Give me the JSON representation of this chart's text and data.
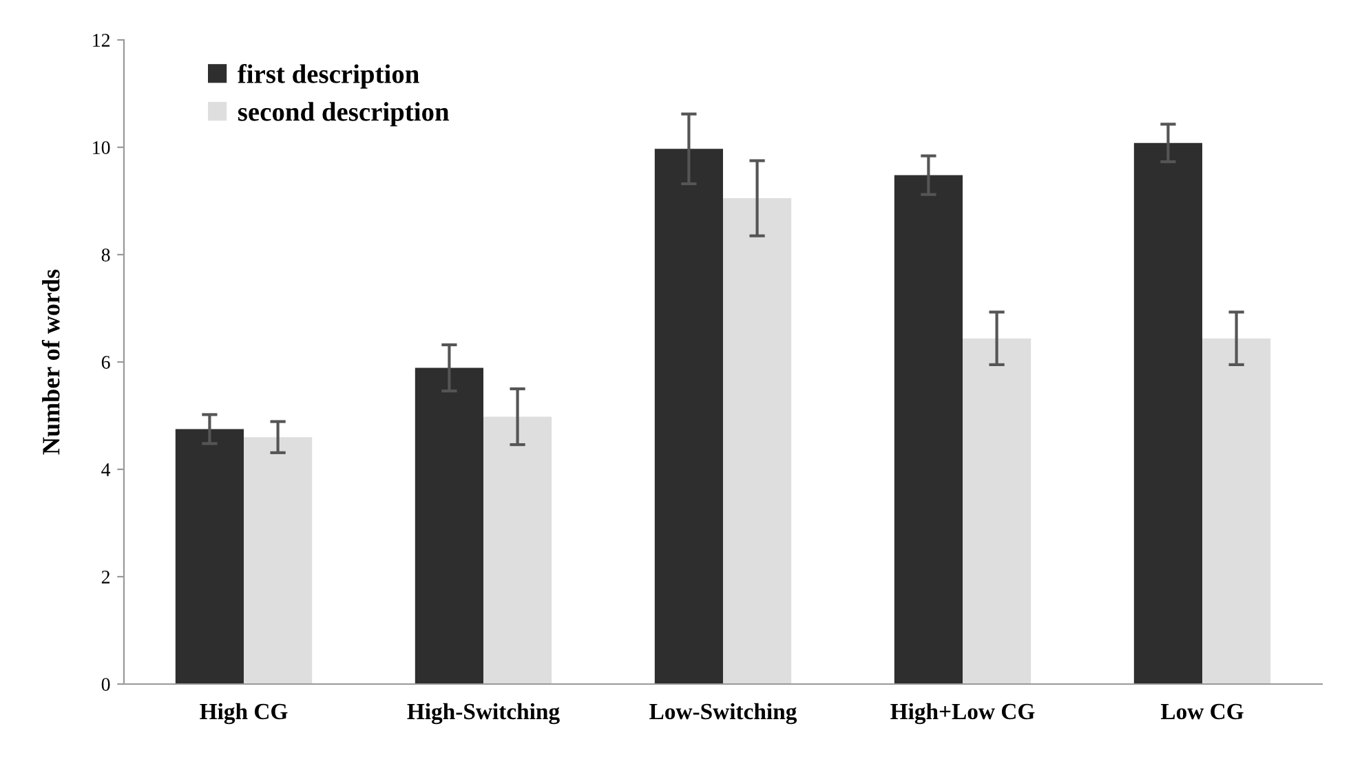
{
  "chart_data": {
    "type": "bar",
    "ylabel": "Number of words",
    "categories": [
      "High CG",
      "High-Switching",
      "Low-Switching",
      "High+Low CG",
      "Low CG"
    ],
    "series": [
      {
        "name": "first description",
        "color": "#2e2e2e",
        "values": [
          4.75,
          5.89,
          9.97,
          9.48,
          10.08
        ],
        "errors": [
          0.27,
          0.43,
          0.65,
          0.36,
          0.35
        ]
      },
      {
        "name": "second description",
        "color": "#dedede",
        "values": [
          4.6,
          4.98,
          9.05,
          6.44,
          6.44
        ],
        "errors": [
          0.29,
          0.52,
          0.7,
          0.49,
          0.49
        ]
      }
    ],
    "ylim": [
      0,
      12
    ],
    "yticks": [
      0,
      2,
      4,
      6,
      8,
      10,
      12
    ],
    "grid": false,
    "legend": "top left"
  }
}
